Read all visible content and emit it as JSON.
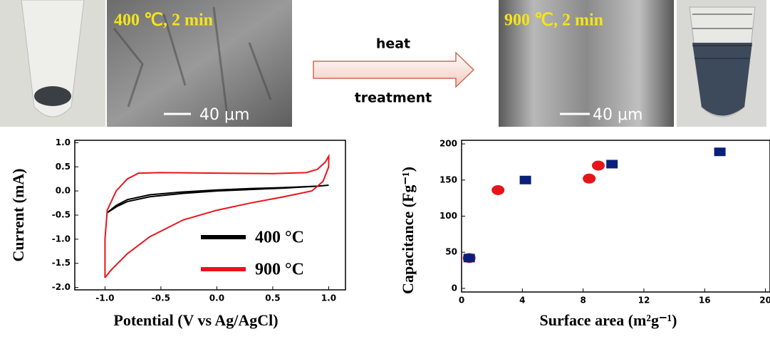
{
  "panels": {
    "sem_left_label": "400 ℃, 2 min",
    "sem_left_scale": "40 μm",
    "arrow_top": "heat",
    "arrow_bottom": "treatment",
    "sem_right_label": "900 ℃, 2 min",
    "sem_right_scale": "40 μm"
  },
  "chart_data": [
    {
      "type": "line",
      "xlabel": "Potential (V vs Ag/AgCl)",
      "ylabel": "Current (mA)",
      "xlim": [
        -1.27,
        1.15
      ],
      "ylim": [
        -2.05,
        1.05
      ],
      "xticks": [
        {
          "value": -1,
          "label": "-1.0"
        },
        -0.5,
        {
          "value": 0,
          "label": "0.0"
        },
        0.5,
        {
          "value": 1,
          "label": "1.0"
        }
      ],
      "yticks": [
        {
          "value": 1,
          "label": "1.0"
        },
        0.5,
        {
          "value": 0,
          "label": "0.0"
        },
        -0.5,
        {
          "value": -1,
          "label": "-1.0"
        },
        -1.5,
        {
          "value": -2,
          "label": "-2.0"
        }
      ],
      "legend": "lower right",
      "series": [
        {
          "name": "400 °C",
          "color": "#000000",
          "x": [
            -0.98,
            -0.9,
            -0.8,
            -0.6,
            -0.3,
            0,
            0.3,
            0.6,
            0.9,
            1.0,
            0.9,
            0.6,
            0.3,
            0,
            -0.3,
            -0.6,
            -0.8,
            -0.9,
            -0.98
          ],
          "values": [
            -0.45,
            -0.3,
            -0.18,
            -0.08,
            -0.02,
            0.02,
            0.05,
            0.07,
            0.1,
            0.12,
            0.1,
            0.06,
            0.03,
            0.0,
            -0.05,
            -0.12,
            -0.22,
            -0.33,
            -0.45
          ]
        },
        {
          "name": "900 °C",
          "color": "#e8141b",
          "x": [
            -1.0,
            -1.0,
            -0.98,
            -0.9,
            -0.8,
            -0.7,
            -0.5,
            0,
            0.5,
            0.8,
            0.9,
            0.97,
            1.0,
            1.0,
            0.95,
            0.85,
            0.6,
            0.3,
            0,
            -0.3,
            -0.6,
            -0.8,
            -0.95,
            -1.0
          ],
          "values": [
            -1.8,
            -1.0,
            -0.4,
            0.0,
            0.25,
            0.37,
            0.38,
            0.37,
            0.36,
            0.38,
            0.45,
            0.6,
            0.72,
            0.5,
            0.2,
            0.0,
            -0.12,
            -0.25,
            -0.4,
            -0.6,
            -0.95,
            -1.3,
            -1.65,
            -1.8
          ]
        }
      ]
    },
    {
      "type": "scatter",
      "xlabel": "Surface area (m²g⁻¹)",
      "ylabel": "Capacitance (Fg⁻¹)",
      "xlim": [
        0,
        20.3
      ],
      "ylim": [
        -5,
        205
      ],
      "xticks": [
        0,
        4,
        8,
        12,
        16,
        20
      ],
      "yticks": [
        0,
        50,
        100,
        150,
        200
      ],
      "series": [
        {
          "color": "#e8141b",
          "marker": "circle",
          "x": [
            0.5,
            2.4,
            8.4,
            9.0
          ],
          "values": [
            42,
            136,
            152,
            170
          ]
        },
        {
          "color": "#0a1f7a",
          "marker": "square",
          "x": [
            0.5,
            4.2,
            9.9,
            17.0
          ],
          "values": [
            42,
            150,
            172,
            189
          ]
        }
      ]
    }
  ]
}
